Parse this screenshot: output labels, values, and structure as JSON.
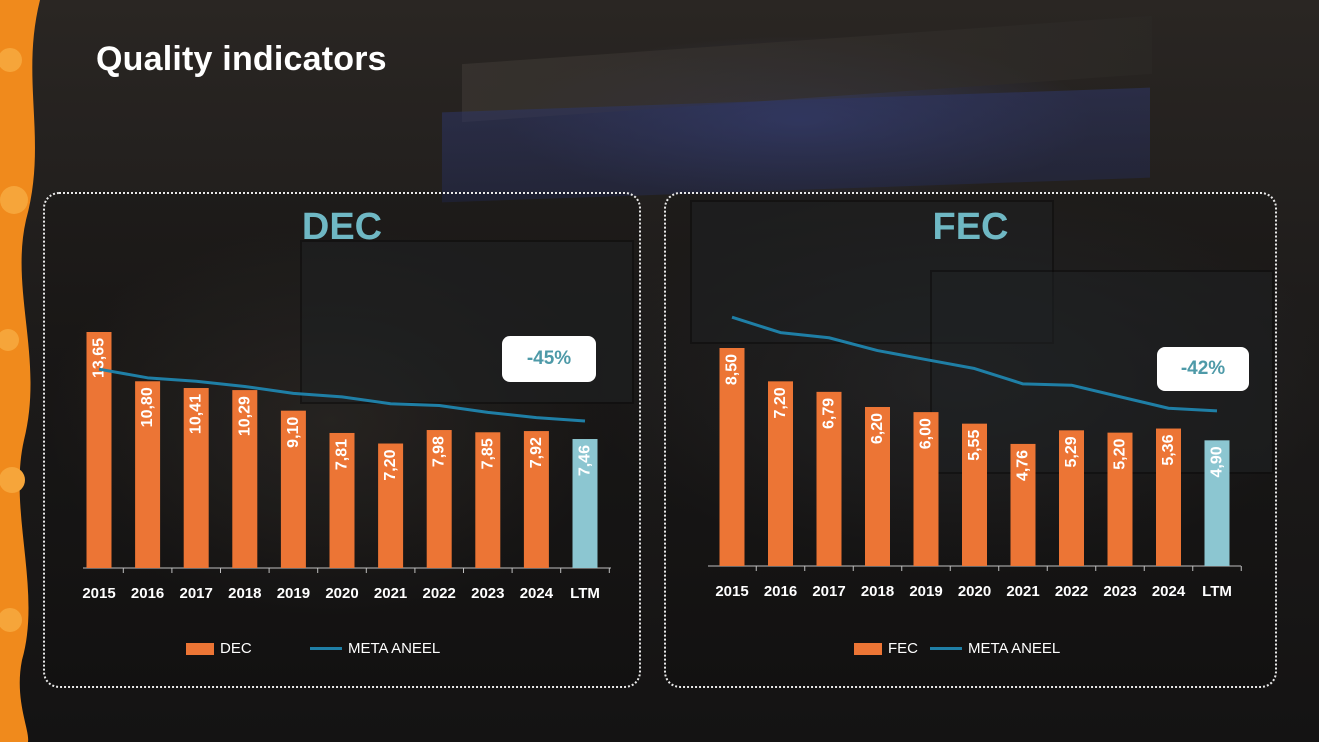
{
  "page": {
    "title": "Quality indicators"
  },
  "colors": {
    "bar": "#ec7535",
    "bar_highlight": "#8cc6d1",
    "meta_line": "#1f7fa6",
    "panel_title": "#6fb8c4",
    "badge_text": "#4e9aa8"
  },
  "chart_data": [
    {
      "type": "bar",
      "title": "DEC",
      "categories": [
        "2015",
        "2016",
        "2017",
        "2018",
        "2019",
        "2020",
        "2021",
        "2022",
        "2023",
        "2024",
        "LTM"
      ],
      "series": [
        {
          "name": "DEC",
          "kind": "bar",
          "values": [
            13.65,
            10.8,
            10.41,
            10.29,
            9.1,
            7.81,
            7.2,
            7.98,
            7.85,
            7.92,
            7.46
          ],
          "labels": [
            "13,65",
            "10,80",
            "10,41",
            "10,29",
            "9,10",
            "7,81",
            "7,20",
            "7,98",
            "7,85",
            "7,92",
            "7,46"
          ],
          "highlight_index": 10
        },
        {
          "name": "META ANEEL",
          "kind": "line",
          "values": [
            11.5,
            11.0,
            10.8,
            10.5,
            10.1,
            9.9,
            9.5,
            9.4,
            9.0,
            8.7,
            8.5
          ]
        }
      ],
      "ylim": [
        0,
        14
      ],
      "legend": "bottom",
      "annotation": "-45%"
    },
    {
      "type": "bar",
      "title": "FEC",
      "categories": [
        "2015",
        "2016",
        "2017",
        "2018",
        "2019",
        "2020",
        "2021",
        "2022",
        "2023",
        "2024",
        "LTM"
      ],
      "series": [
        {
          "name": "FEC",
          "kind": "bar",
          "values": [
            8.5,
            7.2,
            6.79,
            6.2,
            6.0,
            5.55,
            4.76,
            5.29,
            5.2,
            5.36,
            4.9
          ],
          "labels": [
            "8,50",
            "7,20",
            "6,79",
            "6,20",
            "6,00",
            "5,55",
            "4,76",
            "5,29",
            "5,20",
            "5,36",
            "4,90"
          ],
          "highlight_index": 10
        },
        {
          "name": "META ANEEL",
          "kind": "line",
          "values": [
            9.7,
            9.1,
            8.9,
            8.4,
            8.05,
            7.7,
            7.1,
            7.05,
            6.6,
            6.15,
            6.05
          ]
        }
      ],
      "ylim": [
        0,
        9.5
      ],
      "legend": "bottom",
      "annotation": "-42%"
    }
  ]
}
